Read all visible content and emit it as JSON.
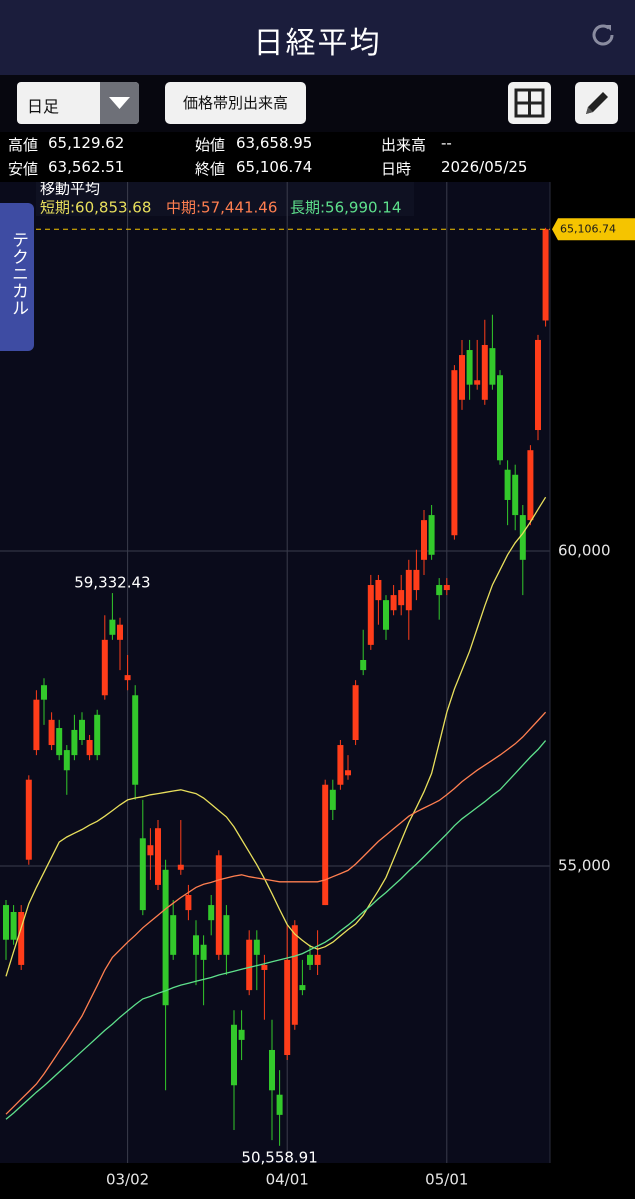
{
  "header": {
    "title": "日経平均"
  },
  "toolbar": {
    "period": "日足",
    "volume_button": "価格帯別出来高"
  },
  "info": {
    "rows": [
      [
        {
          "label": "高値",
          "value": "65,129.62"
        },
        {
          "label": "始値",
          "value": "63,658.95"
        },
        {
          "label": "出来高",
          "value": "--"
        }
      ],
      [
        {
          "label": "安値",
          "value": "63,562.51"
        },
        {
          "label": "終値",
          "value": "65,106.74"
        },
        {
          "label": "日時",
          "value": "2026/05/25"
        }
      ]
    ]
  },
  "side_tab": "テクニカル",
  "chart_data": {
    "type": "candlestick",
    "legend_title": "移動平均",
    "categories": [
      null,
      null,
      null,
      null,
      null,
      null,
      null,
      null,
      null,
      null,
      null,
      null,
      null,
      null,
      null,
      null,
      "03/02",
      null,
      null,
      null,
      null,
      null,
      null,
      null,
      null,
      null,
      null,
      null,
      null,
      null,
      null,
      null,
      null,
      null,
      null,
      null,
      null,
      "04/01",
      null,
      null,
      null,
      null,
      null,
      null,
      null,
      null,
      null,
      null,
      null,
      null,
      null,
      null,
      null,
      null,
      null,
      null,
      null,
      null,
      "05/01",
      null,
      null,
      null,
      null,
      null,
      null,
      null,
      null,
      null,
      null,
      null,
      null,
      null
    ],
    "open": [
      54380,
      54270,
      53430,
      55100,
      56840,
      57870,
      56920,
      57190,
      56840,
      57160,
      57320,
      56760,
      57400,
      57710,
      58910,
      58590,
      57950,
      57710,
      55440,
      55170,
      54700,
      54940,
      54220,
      54940,
      54300,
      53900,
      53750,
      54380,
      53590,
      54220,
      52480,
      52400,
      53030,
      53830,
      53350,
      52080,
      51370,
      52000,
      52480,
      53110,
      53590,
      53430,
      54380,
      56210,
      56290,
      56440,
      57000,
      58270,
      58510,
      59220,
      59220,
      59060,
      59140,
      59060,
      59380,
      59860,
      60570,
      59460,
      59380,
      60250,
      62400,
      63190,
      62640,
      62400,
      63220,
      62790,
      61290,
      61210,
      60570,
      60490,
      61920,
      63658.95
    ],
    "high": [
      54460,
      54380,
      54380,
      56440,
      57790,
      57980,
      57440,
      57320,
      56920,
      57400,
      57440,
      57080,
      57480,
      58980,
      59332.43,
      58940,
      58350,
      57870,
      56050,
      55600,
      55730,
      55100,
      54460,
      55730,
      54700,
      54140,
      53900,
      54540,
      55250,
      54380,
      52710,
      52710,
      53980,
      53980,
      53590,
      52560,
      51760,
      54060,
      54140,
      53510,
      53750,
      53980,
      56370,
      56370,
      57000,
      56760,
      57950,
      58750,
      59620,
      59620,
      59300,
      59460,
      59620,
      59860,
      60020,
      60650,
      60730,
      59570,
      59570,
      62950,
      63350,
      63350,
      63350,
      63670,
      63750,
      62870,
      61440,
      61370,
      60730,
      61680,
      63430,
      65129.62
    ],
    "low": [
      53510,
      53750,
      53350,
      55020,
      56760,
      57240,
      56840,
      56680,
      56130,
      56680,
      56920,
      56680,
      56680,
      57640,
      58590,
      58110,
      57790,
      56050,
      54220,
      54780,
      54620,
      51440,
      53510,
      54860,
      54140,
      53110,
      52790,
      53900,
      53510,
      53270,
      50810,
      51920,
      52950,
      53030,
      52560,
      50650,
      50558.91,
      51920,
      52400,
      52950,
      53350,
      53270,
      54380,
      55730,
      56210,
      56370,
      56920,
      58030,
      58430,
      58830,
      58590,
      58980,
      58980,
      58590,
      59220,
      59620,
      59860,
      58910,
      59300,
      60180,
      62240,
      62400,
      62560,
      62320,
      62560,
      61370,
      60410,
      60330,
      59300,
      60410,
      61760,
      63562.51
    ],
    "close": [
      53830,
      53830,
      54270,
      56370,
      57640,
      57640,
      57320,
      56760,
      56520,
      56760,
      57000,
      57000,
      56760,
      58590,
      58670,
      58830,
      58030,
      56290,
      54300,
      55330,
      55600,
      52790,
      53590,
      55020,
      54540,
      53590,
      53510,
      54140,
      55170,
      53590,
      51520,
      52240,
      53830,
      53590,
      53430,
      51440,
      51050,
      53510,
      54060,
      53030,
      53430,
      53590,
      56290,
      55890,
      56920,
      56520,
      57870,
      58110,
      59460,
      59540,
      58750,
      59300,
      59380,
      59700,
      59700,
      60490,
      59940,
      59300,
      59460,
      62870,
      63110,
      62640,
      62710,
      63270,
      62640,
      61440,
      60810,
      60570,
      59860,
      61600,
      63350,
      65106.74
    ],
    "up_color": "#ff3d1a",
    "down_color": "#33c92b",
    "series": [
      {
        "name": "短期:60,853.68",
        "color": "#e8df5c",
        "values": [
          53250,
          53640,
          54020,
          54400,
          54660,
          54900,
          55140,
          55380,
          55460,
          55520,
          55580,
          55650,
          55710,
          55790,
          55880,
          55970,
          56050,
          56080,
          56100,
          56130,
          56150,
          56170,
          56190,
          56210,
          56180,
          56150,
          56080,
          55980,
          55880,
          55780,
          55620,
          55420,
          55220,
          55020,
          54800,
          54560,
          54310,
          54070,
          53920,
          53820,
          53730,
          53680,
          53720,
          53790,
          53890,
          53990,
          54080,
          54220,
          54420,
          54610,
          54820,
          55110,
          55400,
          55690,
          55930,
          56180,
          56470,
          56950,
          57440,
          57810,
          58110,
          58410,
          58770,
          59130,
          59460,
          59700,
          59940,
          60130,
          60280,
          60460,
          60660,
          60853.68
        ]
      },
      {
        "name": "中期:57,441.46",
        "color": "#ff7f50",
        "values": [
          51060,
          51180,
          51300,
          51420,
          51540,
          51700,
          51880,
          52060,
          52240,
          52430,
          52620,
          52860,
          53100,
          53350,
          53550,
          53670,
          53790,
          53900,
          54020,
          54120,
          54220,
          54320,
          54410,
          54500,
          54580,
          54660,
          54710,
          54740,
          54780,
          54810,
          54840,
          54860,
          54830,
          54810,
          54790,
          54770,
          54750,
          54750,
          54750,
          54750,
          54750,
          54750,
          54780,
          54830,
          54880,
          54930,
          55030,
          55150,
          55270,
          55390,
          55490,
          55590,
          55690,
          55790,
          55860,
          55920,
          55980,
          56040,
          56130,
          56230,
          56340,
          56430,
          56520,
          56600,
          56680,
          56760,
          56850,
          56940,
          57050,
          57180,
          57310,
          57441.46
        ]
      },
      {
        "name": "長期:56,990.14",
        "color": "#5ee08c",
        "values": [
          50980,
          51080,
          51190,
          51300,
          51410,
          51510,
          51620,
          51730,
          51840,
          51950,
          52060,
          52170,
          52280,
          52390,
          52490,
          52600,
          52700,
          52800,
          52890,
          52930,
          52980,
          53020,
          53070,
          53110,
          53140,
          53170,
          53200,
          53230,
          53270,
          53300,
          53330,
          53360,
          53390,
          53420,
          53450,
          53480,
          53510,
          53540,
          53570,
          53610,
          53670,
          53730,
          53790,
          53870,
          53970,
          54060,
          54160,
          54270,
          54370,
          54480,
          54580,
          54690,
          54800,
          54920,
          55030,
          55150,
          55270,
          55390,
          55510,
          55640,
          55750,
          55840,
          55930,
          56020,
          56120,
          56210,
          56340,
          56470,
          56600,
          56730,
          56850,
          56990.14
        ]
      }
    ],
    "ylim": [
      50286,
      65857
    ],
    "yticks": [
      {
        "value": 55000,
        "label": "55,000"
      },
      {
        "value": 60000,
        "label": "60,000"
      }
    ],
    "grid": true,
    "annotations": [
      {
        "text": "59,332.43"
      },
      {
        "text": "50,558.91"
      },
      {
        "text": "65,106.74"
      }
    ]
  }
}
